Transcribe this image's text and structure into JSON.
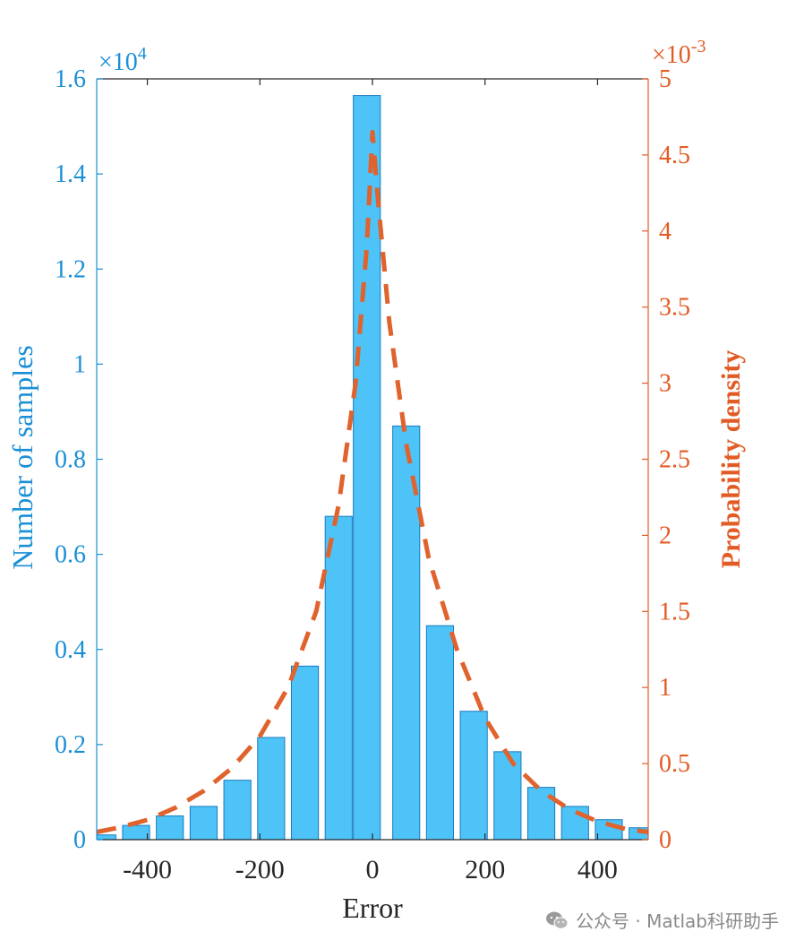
{
  "chart_data": {
    "type": "bar",
    "title": "",
    "xlabel": "Error",
    "ylabel_left": "Number of samples",
    "ylabel_right": "Probability density",
    "left_exponent": "×10",
    "left_exponent_power": "4",
    "right_exponent": "×10",
    "right_exponent_power": "-3",
    "xlim": [
      -490,
      490
    ],
    "ylim_left": [
      0,
      1.6
    ],
    "ylim_right": [
      0,
      5
    ],
    "bar_width": 48,
    "x_ticks": [
      -400,
      -200,
      0,
      200,
      400
    ],
    "x_tick_labels": [
      "-400",
      "-200",
      "0",
      "200",
      "400"
    ],
    "y_left_ticks": [
      0,
      0.2,
      0.4,
      0.6,
      0.8,
      1,
      1.2,
      1.4,
      1.6
    ],
    "y_left_tick_labels": [
      "0",
      "0.2",
      "0.4",
      "0.6",
      "0.8",
      "1",
      "1.2",
      "1.4",
      "1.6"
    ],
    "y_right_ticks": [
      0,
      0.5,
      1,
      1.5,
      2,
      2.5,
      3,
      3.5,
      4,
      4.5,
      5
    ],
    "y_right_tick_labels": [
      "0",
      "0.5",
      "1",
      "1.5",
      "2",
      "2.5",
      "3",
      "3.5",
      "4",
      "4.5",
      "5"
    ],
    "bars": {
      "name": "Number of samples",
      "x": [
        -480,
        -420,
        -360,
        -300,
        -240,
        -180,
        -120,
        -60,
        -10,
        60,
        120,
        180,
        240,
        300,
        360,
        420,
        480
      ],
      "values": [
        0.01,
        0.03,
        0.05,
        0.07,
        0.125,
        0.215,
        0.365,
        0.68,
        1.565,
        0.87,
        0.45,
        0.27,
        0.185,
        0.11,
        0.07,
        0.042,
        0.025
      ]
    },
    "density": {
      "name": "Probability density",
      "style": "dashed",
      "x": [
        -490,
        -450,
        -400,
        -350,
        -300,
        -250,
        -200,
        -150,
        -100,
        -60,
        -30,
        -10,
        0,
        10,
        30,
        60,
        100,
        150,
        200,
        250,
        300,
        350,
        400,
        450,
        490
      ],
      "values": [
        0.05,
        0.08,
        0.13,
        0.21,
        0.32,
        0.47,
        0.68,
        1.0,
        1.5,
        2.2,
        3.0,
        3.9,
        4.65,
        4.2,
        3.4,
        2.6,
        1.85,
        1.25,
        0.8,
        0.5,
        0.32,
        0.2,
        0.12,
        0.07,
        0.05
      ]
    },
    "colors": {
      "left_axis": "#1a8fd6",
      "right_axis": "#e25b24",
      "bar_fill": "#4dc3f7",
      "bar_edge": "#1a7bbf",
      "density_line": "#e0622c",
      "xaxis": "#262626"
    },
    "grid": false,
    "legend": "none"
  },
  "watermark": {
    "icon": "wechat-icon",
    "text": "公众号 · Matlab科研助手"
  }
}
